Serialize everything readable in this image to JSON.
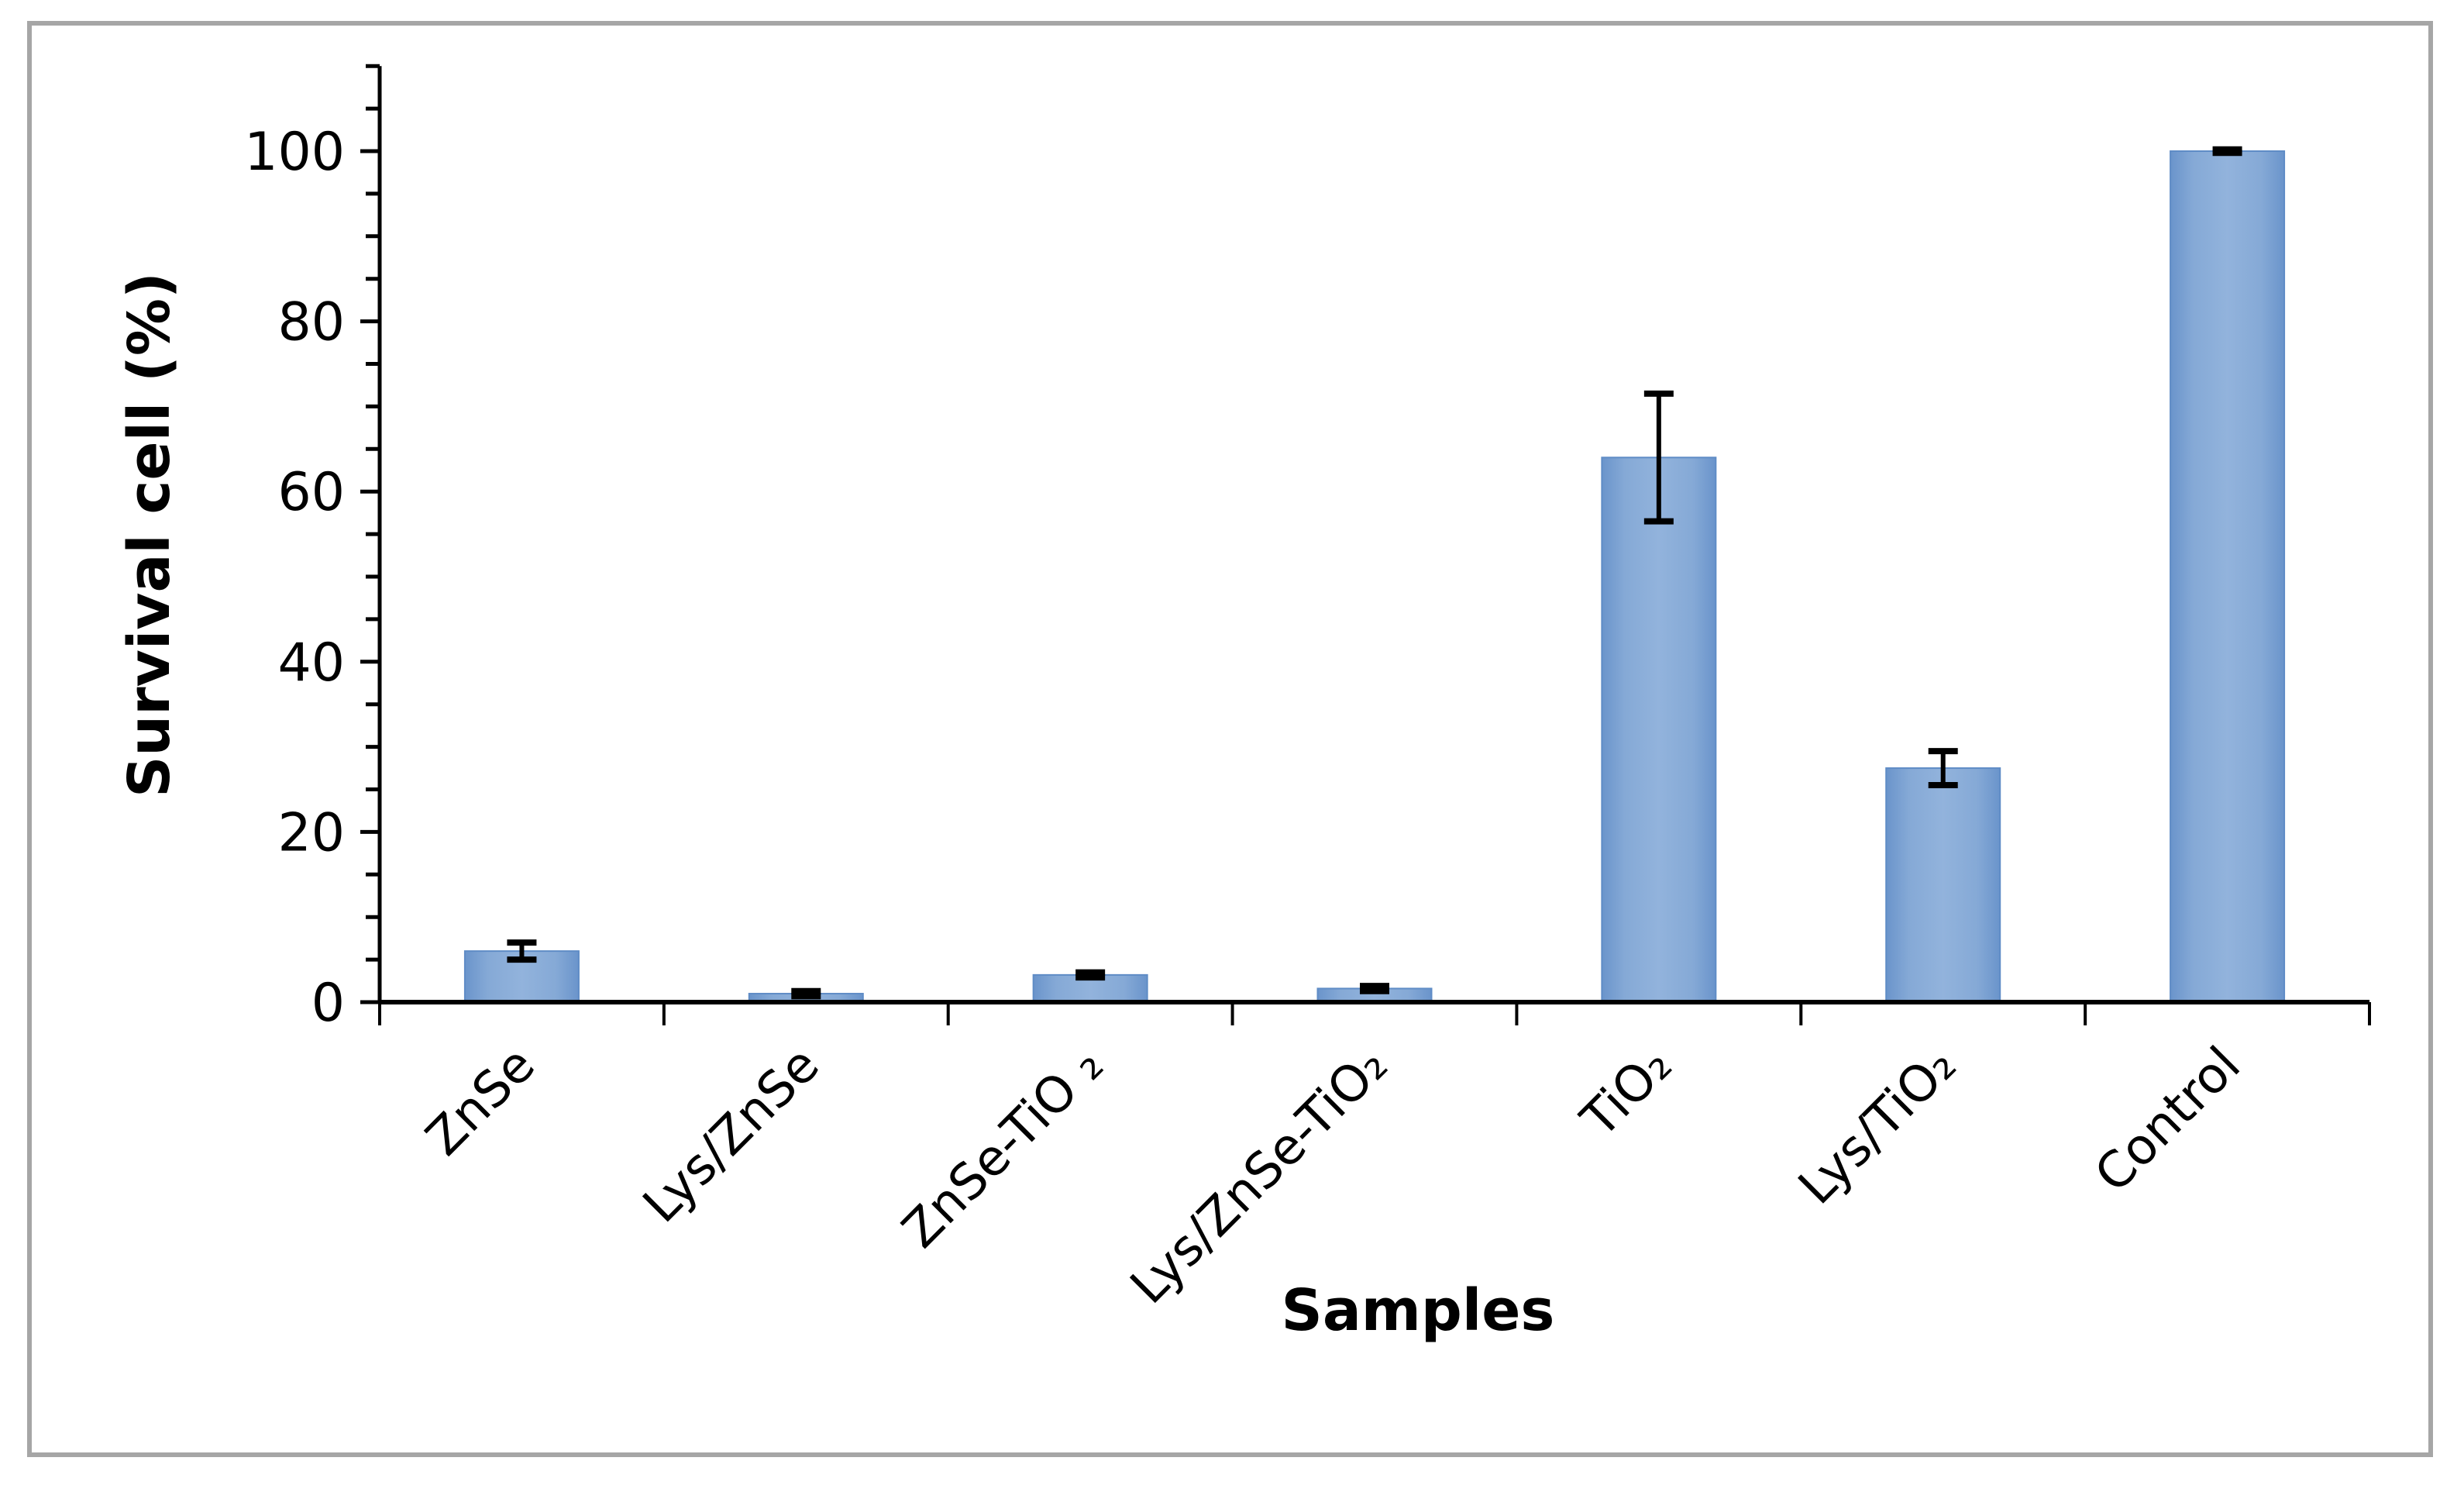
{
  "chart_data": {
    "type": "bar",
    "title": "",
    "xlabel": "Samples",
    "ylabel": "Survival cell (%)",
    "categories": [
      "ZnSe",
      "Lys/ZnSe",
      "ZnSe-TiO ₂",
      "Lys/ZnSe-TiO₂",
      "TiO₂",
      "Lys/TiO₂",
      "Control"
    ],
    "values": [
      6,
      1,
      3.2,
      1.6,
      64,
      27.5,
      100
    ],
    "error": [
      1.0,
      0.3,
      0.3,
      0.3,
      7.5,
      2.0,
      0.2
    ],
    "ylim": [
      0,
      110
    ],
    "yticks": [
      0,
      20,
      40,
      60,
      80,
      100
    ],
    "ytick_labels": [
      "0",
      "20",
      "40",
      "60",
      "80",
      "100"
    ],
    "minor_tick_step": 5,
    "grid": false,
    "legend": null,
    "bar_color": "#7ba3d4",
    "bar_edge_color": "#5f8cc6"
  }
}
